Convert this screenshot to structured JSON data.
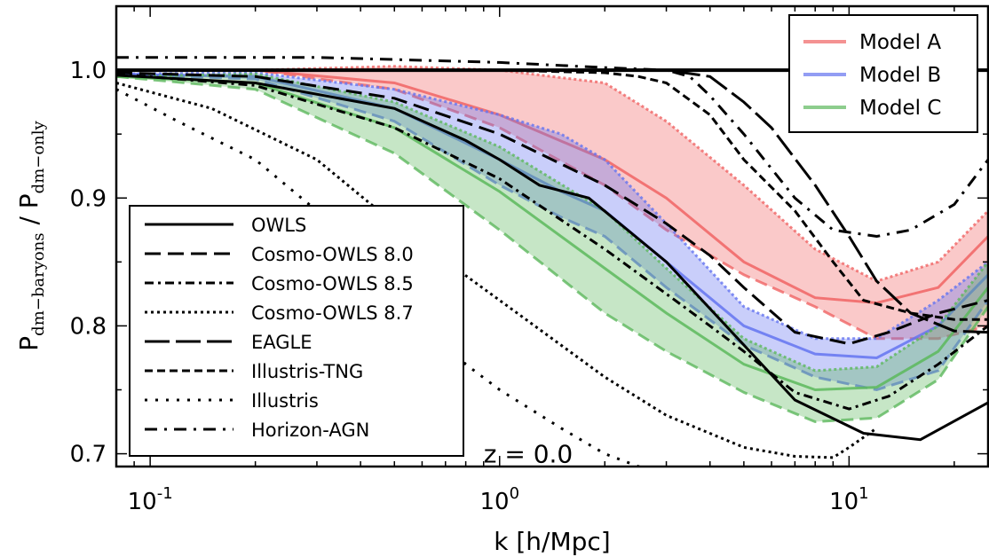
{
  "chart_data": {
    "type": "line",
    "title": "",
    "xlabel": "k [h/Mpc]",
    "ylabel_main": "P",
    "ylabel_sub1": "dm−baryons",
    "ylabel_sep": " / ",
    "ylabel_sub2": "dm−only",
    "xscale": "log",
    "xlim": [
      0.08,
      25
    ],
    "ylim": [
      0.69,
      1.05
    ],
    "x_ticks": [
      {
        "value": 0.1,
        "base": "10",
        "exp": "-1"
      },
      {
        "value": 1,
        "base": "10",
        "exp": "0"
      },
      {
        "value": 10,
        "base": "10",
        "exp": "1"
      }
    ],
    "y_ticks": [
      {
        "value": 0.7,
        "label": "0.7"
      },
      {
        "value": 0.8,
        "label": "0.8"
      },
      {
        "value": 0.9,
        "label": "0.9"
      },
      {
        "value": 1.0,
        "label": "1.0"
      }
    ],
    "annotation": {
      "text": "z = 0.0",
      "x": 0.9,
      "y": 0.7
    },
    "reference_line": {
      "y": 1.0
    },
    "bands": [
      {
        "name": "Model A",
        "color": "#f06464",
        "x": [
          0.08,
          0.2,
          0.5,
          1,
          2,
          3,
          5,
          8,
          12,
          18,
          25
        ],
        "center": [
          1.0,
          1.0,
          0.99,
          0.965,
          0.93,
          0.9,
          0.85,
          0.822,
          0.818,
          0.83,
          0.87
        ],
        "lower": [
          1.0,
          1.0,
          0.985,
          0.955,
          0.91,
          0.875,
          0.84,
          0.815,
          0.79,
          0.79,
          0.8
        ],
        "upper": [
          1.0,
          1.0,
          1.003,
          1.0,
          0.99,
          0.96,
          0.91,
          0.86,
          0.835,
          0.85,
          0.89
        ]
      },
      {
        "name": "Model B",
        "color": "#6474f0",
        "x": [
          0.08,
          0.2,
          0.5,
          1,
          1.5,
          2,
          3,
          5,
          8,
          12,
          18,
          25
        ],
        "center": [
          0.997,
          0.995,
          0.97,
          0.93,
          0.905,
          0.89,
          0.85,
          0.8,
          0.778,
          0.775,
          0.8,
          0.84
        ],
        "lower": [
          0.997,
          0.993,
          0.96,
          0.91,
          0.885,
          0.87,
          0.83,
          0.785,
          0.76,
          0.75,
          0.765,
          0.82
        ],
        "upper": [
          0.997,
          0.998,
          0.985,
          0.965,
          0.95,
          0.93,
          0.88,
          0.815,
          0.79,
          0.79,
          0.82,
          0.85
        ]
      },
      {
        "name": "Model C",
        "color": "#5cb85c",
        "x": [
          0.08,
          0.2,
          0.5,
          1,
          2,
          3,
          5,
          8,
          12,
          18,
          25
        ],
        "center": [
          0.995,
          0.99,
          0.955,
          0.905,
          0.845,
          0.81,
          0.77,
          0.75,
          0.752,
          0.78,
          0.83
        ],
        "lower": [
          0.995,
          0.985,
          0.935,
          0.875,
          0.81,
          0.78,
          0.748,
          0.725,
          0.728,
          0.758,
          0.815
        ],
        "upper": [
          0.995,
          0.997,
          0.975,
          0.94,
          0.89,
          0.845,
          0.79,
          0.765,
          0.768,
          0.8,
          0.85
        ]
      }
    ],
    "series": [
      {
        "name": "OWLS",
        "style": "solid",
        "x": [
          0.08,
          0.2,
          0.5,
          0.8,
          1.0,
          1.3,
          1.8,
          3,
          5,
          7,
          11,
          16,
          25
        ],
        "y": [
          0.996,
          0.99,
          0.97,
          0.945,
          0.93,
          0.91,
          0.9,
          0.85,
          0.785,
          0.742,
          0.716,
          0.711,
          0.74
        ]
      },
      {
        "name": "Cosmo-OWLS 8.0",
        "style": "dashed",
        "x": [
          0.08,
          0.2,
          0.5,
          1,
          2,
          3,
          4,
          5,
          7,
          10,
          13,
          18,
          25
        ],
        "y": [
          0.998,
          0.995,
          0.978,
          0.95,
          0.91,
          0.88,
          0.855,
          0.83,
          0.795,
          0.786,
          0.795,
          0.81,
          0.82
        ]
      },
      {
        "name": "Cosmo-OWLS 8.5",
        "style": "dashdot",
        "x": [
          0.08,
          0.2,
          0.5,
          1,
          2,
          3,
          4,
          5,
          7,
          10,
          13,
          18,
          25
        ],
        "y": [
          0.997,
          0.988,
          0.955,
          0.915,
          0.86,
          0.825,
          0.8,
          0.78,
          0.748,
          0.735,
          0.745,
          0.77,
          0.8
        ]
      },
      {
        "name": "Cosmo-OWLS 8.7",
        "style": "dotted",
        "x": [
          0.08,
          0.15,
          0.3,
          0.5,
          1,
          2,
          3,
          5,
          7,
          9,
          10,
          12
        ],
        "y": [
          0.99,
          0.97,
          0.93,
          0.88,
          0.82,
          0.76,
          0.73,
          0.705,
          0.698,
          0.697,
          0.705,
          0.72
        ]
      },
      {
        "name": "EAGLE",
        "style": "longdash",
        "x": [
          0.08,
          0.5,
          1,
          2,
          3,
          4,
          5,
          6,
          8,
          10,
          12,
          15,
          20,
          25
        ],
        "y": [
          1.0,
          1.0,
          1.0,
          1.0,
          1.0,
          0.995,
          0.975,
          0.955,
          0.91,
          0.87,
          0.835,
          0.81,
          0.796,
          0.795
        ]
      },
      {
        "name": "Illustris-TNG",
        "style": "shortdash",
        "x": [
          0.08,
          0.5,
          1,
          2,
          2.5,
          3,
          4,
          5,
          7,
          9,
          11,
          15,
          20,
          25
        ],
        "y": [
          1.0,
          1.0,
          1.0,
          0.998,
          0.995,
          0.99,
          0.965,
          0.93,
          0.89,
          0.85,
          0.82,
          0.81,
          0.805,
          0.805
        ]
      },
      {
        "name": "Illustris",
        "style": "loosedot",
        "x": [
          0.08,
          0.12,
          0.2,
          0.3,
          0.5,
          0.8,
          1.0,
          1.5,
          2,
          2.5,
          3
        ],
        "y": [
          0.985,
          0.96,
          0.93,
          0.89,
          0.83,
          0.77,
          0.75,
          0.72,
          0.7,
          0.69,
          0.685
        ]
      },
      {
        "name": "Horizon-AGN",
        "style": "loosedashdot",
        "x": [
          0.08,
          0.3,
          1,
          2,
          3,
          3.5,
          4,
          5,
          7,
          9,
          12,
          15,
          20,
          25
        ],
        "y": [
          1.01,
          1.01,
          1.006,
          1.002,
          1.0,
          0.995,
          0.98,
          0.95,
          0.9,
          0.875,
          0.87,
          0.875,
          0.895,
          0.93
        ]
      }
    ],
    "legend_models": {
      "placement": "top-right",
      "entries": [
        "Model A",
        "Model B",
        "Model C"
      ]
    },
    "legend_sims": {
      "placement": "lower-left",
      "entries": [
        "OWLS",
        "Cosmo-OWLS 8.0",
        "Cosmo-OWLS 8.5",
        "Cosmo-OWLS 8.7",
        "EAGLE",
        "Illustris-TNG",
        "Illustris",
        "Horizon-AGN"
      ]
    }
  }
}
